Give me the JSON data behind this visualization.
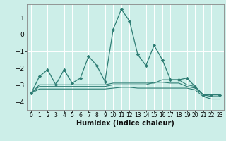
{
  "title": "",
  "xlabel": "Humidex (Indice chaleur)",
  "ylabel": "",
  "bg_color": "#cceee8",
  "line_color": "#2e7d74",
  "grid_color": "#ffffff",
  "xlim": [
    -0.5,
    23.5
  ],
  "ylim": [
    -4.5,
    1.8
  ],
  "yticks": [
    -4,
    -3,
    -2,
    -1,
    0,
    1
  ],
  "xticks": [
    0,
    1,
    2,
    3,
    4,
    5,
    6,
    7,
    8,
    9,
    10,
    11,
    12,
    13,
    14,
    15,
    16,
    17,
    18,
    19,
    20,
    21,
    22,
    23
  ],
  "series1_x": [
    0,
    1,
    2,
    3,
    4,
    5,
    6,
    7,
    8,
    9,
    10,
    11,
    12,
    13,
    14,
    15,
    16,
    17,
    18,
    19,
    20,
    21,
    22,
    23
  ],
  "series1_y": [
    -3.5,
    -2.5,
    -2.1,
    -3.0,
    -2.1,
    -2.9,
    -2.6,
    -1.3,
    -1.85,
    -2.8,
    0.3,
    1.5,
    0.8,
    -1.2,
    -1.85,
    -0.65,
    -1.5,
    -2.7,
    -2.7,
    -2.6,
    -3.1,
    -3.6,
    -3.6,
    -3.6
  ],
  "series2_x": [
    0,
    1,
    2,
    3,
    4,
    5,
    6,
    7,
    8,
    9,
    10,
    11,
    12,
    13,
    14,
    15,
    16,
    17,
    18,
    19,
    20,
    21,
    22,
    23
  ],
  "series2_y": [
    -3.5,
    -3.0,
    -3.0,
    -3.0,
    -3.0,
    -3.0,
    -3.0,
    -3.0,
    -3.0,
    -3.0,
    -2.9,
    -2.9,
    -2.9,
    -2.9,
    -2.9,
    -2.9,
    -2.7,
    -2.7,
    -2.7,
    -3.0,
    -3.1,
    -3.6,
    -3.6,
    -3.6
  ],
  "series3_x": [
    0,
    1,
    2,
    3,
    4,
    5,
    6,
    7,
    8,
    9,
    10,
    11,
    12,
    13,
    14,
    15,
    16,
    17,
    18,
    19,
    20,
    21,
    22,
    23
  ],
  "series3_y": [
    -3.5,
    -3.1,
    -3.1,
    -3.1,
    -3.1,
    -3.1,
    -3.1,
    -3.1,
    -3.1,
    -3.1,
    -3.0,
    -3.0,
    -3.0,
    -3.0,
    -3.0,
    -2.85,
    -2.85,
    -2.9,
    -2.9,
    -3.1,
    -3.2,
    -3.6,
    -3.7,
    -3.7
  ],
  "series4_x": [
    0,
    1,
    2,
    3,
    4,
    5,
    6,
    7,
    8,
    9,
    10,
    11,
    12,
    13,
    14,
    15,
    16,
    17,
    18,
    19,
    20,
    21,
    22,
    23
  ],
  "series4_y": [
    -3.5,
    -3.25,
    -3.25,
    -3.25,
    -3.25,
    -3.25,
    -3.25,
    -3.25,
    -3.25,
    -3.25,
    -3.2,
    -3.15,
    -3.15,
    -3.2,
    -3.2,
    -3.2,
    -3.2,
    -3.2,
    -3.2,
    -3.2,
    -3.3,
    -3.7,
    -3.85,
    -3.85
  ]
}
